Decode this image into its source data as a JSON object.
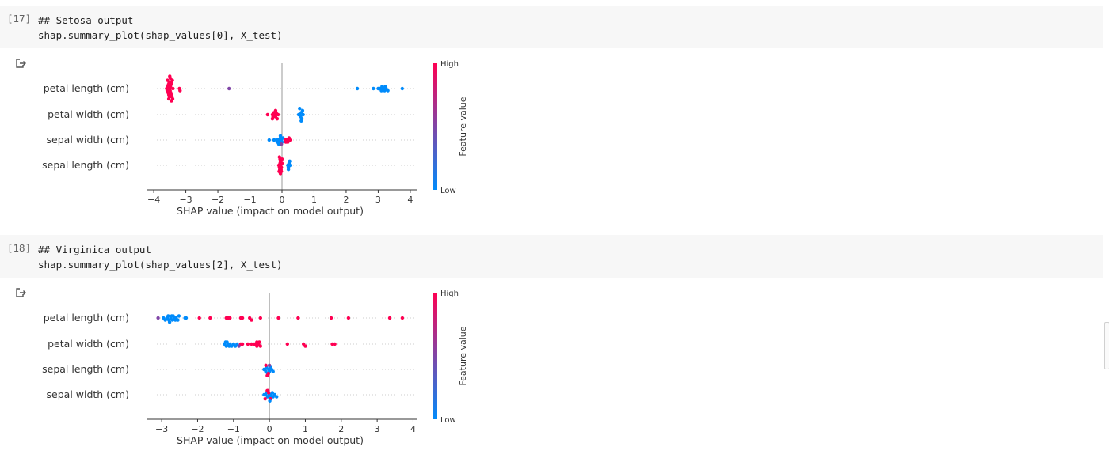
{
  "cells": [
    {
      "prompt": "[17]",
      "code_lines": [
        "## Setosa output",
        "shap.summary_plot(shap_values[0], X_test)"
      ]
    },
    {
      "prompt": "[18]",
      "code_lines": [
        "## Virginica output",
        "shap.summary_plot(shap_values[2], X_test)"
      ]
    }
  ],
  "output_icon": "output-redirect-icon",
  "colors": {
    "high": "#ff0052",
    "low": "#008bfb",
    "axis": "#333333",
    "cell_bg": "#f7f7f7"
  },
  "chart_data": [
    {
      "type": "scatter",
      "subtype": "shap-beeswarm",
      "xlabel": "SHAP value (impact on model output)",
      "xlim": [
        -4.2,
        4.2
      ],
      "xticks": [
        -4,
        -3,
        -2,
        -1,
        0,
        1,
        2,
        3,
        4
      ],
      "xtick_labels": [
        "−4",
        "−3",
        "−2",
        "−1",
        "0",
        "1",
        "2",
        "3",
        "4"
      ],
      "colorbar": {
        "label": "Feature value",
        "high": "High",
        "low": "Low"
      },
      "features": [
        {
          "name": "petal length (cm)",
          "points": [
            [
              -3.6,
              1
            ],
            [
              -3.58,
              1
            ],
            [
              -3.56,
              1
            ],
            [
              -3.55,
              1
            ],
            [
              -3.54,
              1
            ],
            [
              -3.53,
              1
            ],
            [
              -3.52,
              1
            ],
            [
              -3.51,
              1
            ],
            [
              -3.5,
              1
            ],
            [
              -3.49,
              1
            ],
            [
              -3.48,
              1
            ],
            [
              -3.47,
              1
            ],
            [
              -3.46,
              1
            ],
            [
              -3.45,
              1
            ],
            [
              -3.44,
              1
            ],
            [
              -3.43,
              1
            ],
            [
              -3.42,
              1
            ],
            [
              -3.41,
              1
            ],
            [
              -3.4,
              1
            ],
            [
              -3.57,
              1
            ],
            [
              -3.53,
              1
            ],
            [
              -3.48,
              1
            ],
            [
              -3.45,
              1
            ],
            [
              -3.5,
              1
            ],
            [
              -3.2,
              1
            ],
            [
              -3.18,
              1
            ],
            [
              -1.65,
              0.5
            ],
            [
              2.35,
              0
            ],
            [
              2.85,
              0
            ],
            [
              3.0,
              0
            ],
            [
              3.05,
              0
            ],
            [
              3.1,
              0
            ],
            [
              3.15,
              0
            ],
            [
              3.2,
              0
            ],
            [
              3.25,
              0
            ],
            [
              3.3,
              0
            ],
            [
              3.12,
              0
            ],
            [
              3.22,
              0
            ],
            [
              3.75,
              0
            ]
          ]
        },
        {
          "name": "petal width (cm)",
          "points": [
            [
              -0.45,
              1
            ],
            [
              -0.3,
              1
            ],
            [
              -0.28,
              1
            ],
            [
              -0.25,
              1
            ],
            [
              -0.22,
              1
            ],
            [
              -0.2,
              1
            ],
            [
              -0.18,
              1
            ],
            [
              -0.15,
              1
            ],
            [
              -0.12,
              1
            ],
            [
              -0.3,
              1
            ],
            [
              -0.2,
              1
            ],
            [
              0.52,
              0
            ],
            [
              0.55,
              0
            ],
            [
              0.58,
              0
            ],
            [
              0.6,
              0
            ],
            [
              0.62,
              0
            ],
            [
              0.64,
              0
            ],
            [
              0.66,
              0
            ],
            [
              0.6,
              0
            ],
            [
              0.55,
              0
            ]
          ]
        },
        {
          "name": "sepal width (cm)",
          "points": [
            [
              -0.4,
              0
            ],
            [
              -0.25,
              0
            ],
            [
              -0.18,
              0
            ],
            [
              -0.12,
              0
            ],
            [
              -0.08,
              0
            ],
            [
              -0.05,
              0
            ],
            [
              -0.02,
              0
            ],
            [
              0.0,
              0
            ],
            [
              0.03,
              0
            ],
            [
              -0.15,
              0
            ],
            [
              -0.1,
              0
            ],
            [
              -0.05,
              0
            ],
            [
              0.1,
              1
            ],
            [
              0.15,
              1
            ],
            [
              0.18,
              1
            ],
            [
              0.22,
              1
            ],
            [
              0.25,
              1
            ],
            [
              0.12,
              1
            ],
            [
              -0.02,
              0.5
            ]
          ]
        },
        {
          "name": "sepal length (cm)",
          "points": [
            [
              -0.1,
              1
            ],
            [
              -0.08,
              1
            ],
            [
              -0.06,
              1
            ],
            [
              -0.04,
              1
            ],
            [
              -0.02,
              1
            ],
            [
              0.0,
              1
            ],
            [
              -0.07,
              1
            ],
            [
              -0.05,
              1
            ],
            [
              -0.03,
              1
            ],
            [
              -0.09,
              1
            ],
            [
              -0.06,
              1
            ],
            [
              -0.04,
              1
            ],
            [
              -0.02,
              1
            ],
            [
              0.0,
              1
            ],
            [
              -0.05,
              1
            ],
            [
              -0.08,
              1
            ],
            [
              0.18,
              0
            ],
            [
              0.2,
              0
            ],
            [
              0.22,
              0
            ],
            [
              0.25,
              0
            ],
            [
              0.2,
              0
            ],
            [
              0.24,
              0
            ]
          ]
        }
      ]
    },
    {
      "type": "scatter",
      "subtype": "shap-beeswarm",
      "xlabel": "SHAP value (impact on model output)",
      "xlim": [
        -3.4,
        4.1
      ],
      "xticks": [
        -3,
        -2,
        -1,
        0,
        1,
        2,
        3,
        4
      ],
      "xtick_labels": [
        "−3",
        "−2",
        "−1",
        "0",
        "1",
        "2",
        "3",
        "4"
      ],
      "colorbar": {
        "label": "Feature value",
        "high": "High",
        "low": "Low"
      },
      "features": [
        {
          "name": "petal length (cm)",
          "points": [
            [
              -3.1,
              0.5
            ],
            [
              -2.95,
              0
            ],
            [
              -2.9,
              0
            ],
            [
              -2.85,
              0
            ],
            [
              -2.8,
              0
            ],
            [
              -2.75,
              0
            ],
            [
              -2.7,
              0
            ],
            [
              -2.65,
              0
            ],
            [
              -2.6,
              0
            ],
            [
              -2.55,
              0
            ],
            [
              -2.82,
              0
            ],
            [
              -2.72,
              0
            ],
            [
              -2.62,
              0
            ],
            [
              -2.68,
              0
            ],
            [
              -2.78,
              0
            ],
            [
              -2.52,
              0
            ],
            [
              -2.35,
              0
            ],
            [
              -2.32,
              0
            ],
            [
              -1.95,
              1
            ],
            [
              -1.65,
              1
            ],
            [
              -1.2,
              1
            ],
            [
              -1.15,
              1
            ],
            [
              -1.1,
              1
            ],
            [
              -0.8,
              1
            ],
            [
              -0.75,
              1
            ],
            [
              -0.55,
              1
            ],
            [
              -0.5,
              1
            ],
            [
              -0.25,
              1
            ],
            [
              0.25,
              1
            ],
            [
              0.8,
              1
            ],
            [
              1.72,
              1
            ],
            [
              2.2,
              1
            ],
            [
              3.35,
              1
            ],
            [
              3.7,
              1
            ]
          ]
        },
        {
          "name": "petal width (cm)",
          "points": [
            [
              -1.25,
              0
            ],
            [
              -1.2,
              0
            ],
            [
              -1.15,
              0
            ],
            [
              -1.1,
              0
            ],
            [
              -1.05,
              0
            ],
            [
              -1.0,
              0
            ],
            [
              -0.95,
              0
            ],
            [
              -0.9,
              0
            ],
            [
              -1.22,
              0
            ],
            [
              -1.12,
              0
            ],
            [
              -1.18,
              0
            ],
            [
              -0.8,
              1
            ],
            [
              -0.75,
              1
            ],
            [
              -0.6,
              1
            ],
            [
              -0.5,
              1
            ],
            [
              -0.42,
              1
            ],
            [
              -0.38,
              1
            ],
            [
              -0.35,
              1
            ],
            [
              -0.3,
              1
            ],
            [
              -0.25,
              1
            ],
            [
              -0.35,
              1
            ],
            [
              -0.28,
              1
            ],
            [
              0.5,
              1
            ],
            [
              0.95,
              1
            ],
            [
              1.0,
              1
            ],
            [
              1.75,
              1
            ],
            [
              1.82,
              1
            ],
            [
              -0.85,
              0.5
            ]
          ]
        },
        {
          "name": "sepal length (cm)",
          "points": [
            [
              -0.15,
              0
            ],
            [
              -0.12,
              0
            ],
            [
              -0.1,
              0
            ],
            [
              -0.08,
              0
            ],
            [
              -0.05,
              0
            ],
            [
              -0.02,
              0
            ],
            [
              0.0,
              0
            ],
            [
              0.03,
              0
            ],
            [
              0.06,
              0
            ],
            [
              0.1,
              0
            ],
            [
              -0.1,
              1
            ],
            [
              -0.06,
              1
            ],
            [
              -0.03,
              1
            ],
            [
              0.0,
              0.5
            ]
          ]
        },
        {
          "name": "sepal width (cm)",
          "points": [
            [
              -0.15,
              0
            ],
            [
              -0.1,
              0
            ],
            [
              -0.05,
              0
            ],
            [
              0.0,
              0
            ],
            [
              0.05,
              0
            ],
            [
              0.1,
              0
            ],
            [
              0.15,
              0
            ],
            [
              0.2,
              0
            ],
            [
              -0.08,
              0
            ],
            [
              0.02,
              0
            ],
            [
              0.08,
              0
            ],
            [
              -0.12,
              1
            ],
            [
              -0.06,
              1
            ],
            [
              -0.02,
              1
            ],
            [
              0.03,
              1
            ],
            [
              -0.04,
              1
            ],
            [
              0.01,
              0
            ]
          ]
        }
      ]
    }
  ]
}
